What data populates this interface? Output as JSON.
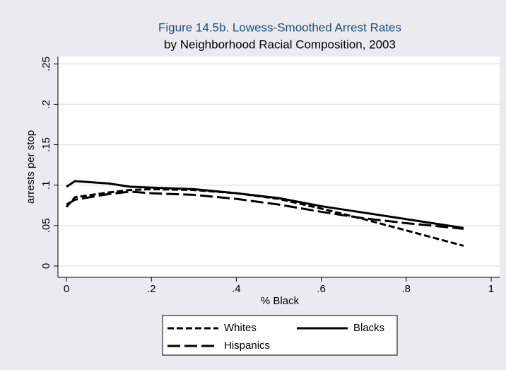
{
  "chart_data": {
    "type": "line",
    "title": "Figure 14.5b.  Lowess-Smoothed Arrest Rates",
    "subtitle": "by Neighborhood Racial Composition, 2003",
    "x_label": "% Black",
    "y_label": "arrests per stop",
    "x": [
      0,
      0.02,
      0.1,
      0.15,
      0.2,
      0.3,
      0.4,
      0.5,
      0.6,
      0.7,
      0.8,
      0.935
    ],
    "series": [
      {
        "name": "Whites",
        "color": "#000000",
        "dash": "short",
        "values": [
          0.073,
          0.085,
          0.091,
          0.094,
          0.095,
          0.094,
          0.09,
          0.083,
          0.071,
          0.058,
          0.044,
          0.025
        ]
      },
      {
        "name": "Blacks",
        "color": "#000000",
        "dash": "solid",
        "values": [
          0.098,
          0.105,
          0.102,
          0.098,
          0.097,
          0.095,
          0.09,
          0.084,
          0.074,
          0.066,
          0.058,
          0.047
        ]
      },
      {
        "name": "Hispanics",
        "color": "#000000",
        "dash": "long",
        "values": [
          0.076,
          0.082,
          0.089,
          0.092,
          0.09,
          0.088,
          0.083,
          0.076,
          0.067,
          0.059,
          0.053,
          0.046
        ]
      }
    ],
    "xlim": [
      -0.02,
      1.02
    ],
    "ylim": [
      -0.014,
      0.259
    ],
    "xticks": [
      0,
      {
        "value": 0.2,
        "label": ".2"
      },
      {
        "value": 0.4,
        "label": ".4"
      },
      {
        "value": 0.6,
        "label": ".6"
      },
      {
        "value": 0.8,
        "label": ".8"
      },
      1
    ],
    "yticks": [
      0,
      {
        "value": 0.05,
        "label": ".05"
      },
      {
        "value": 0.1,
        "label": ".1"
      },
      {
        "value": 0.15,
        "label": ".15"
      },
      {
        "value": 0.2,
        "label": ".2"
      },
      {
        "value": 0.25,
        "label": ".25"
      }
    ],
    "grid": true,
    "legend": "bottom"
  }
}
